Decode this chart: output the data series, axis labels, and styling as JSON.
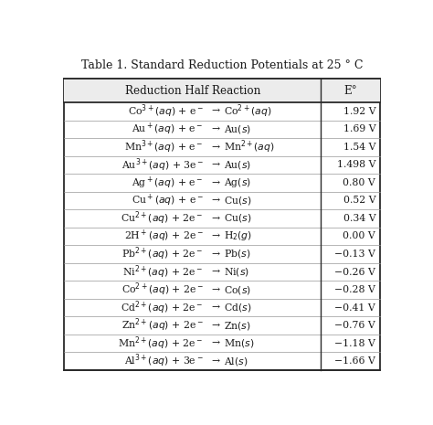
{
  "title": "Table 1. Standard Reduction Potentials at 25 ° C",
  "col_header_left": "Reduction Half Reaction",
  "col_header_right": "E°",
  "rows_left": [
    "Co$^{3+}$$(aq)$ + e$^-$",
    "Au$^+$$(aq)$ + e$^-$",
    "Mn$^{3+}$$(aq)$ + e$^-$",
    "Au$^{3+}$$(aq)$ + 3e$^-$",
    "Ag$^+$$(aq)$ + e$^-$",
    "Cu$^+$$(aq)$ + e$^-$",
    "Cu$^{2+}$$(aq)$ + 2e$^-$",
    "2H$^+$$(aq)$ + 2e$^-$",
    "Pb$^{2+}$$(aq)$ + 2e$^-$",
    "Ni$^{2+}$$(aq)$ + 2e$^-$",
    "Co$^{2+}$$(aq)$ + 2e$^-$",
    "Cd$^{2+}$$(aq)$ + 2e$^-$",
    "Zn$^{2+}$$(aq)$ + 2e$^-$",
    "Mn$^{2+}$$(aq)$ + 2e$^-$",
    "Al$^{3+}$$(aq)$ + 3e$^-$"
  ],
  "rows_right": [
    "Co$^{2+}$$(aq)$",
    "Au$(s)$",
    "Mn$^{2+}$$(aq)$",
    "Au$(s)$",
    "Ag$(s)$",
    "Cu$(s)$",
    "Cu$(s)$",
    "H$_2$$(g)$",
    "Pb$(s)$",
    "Ni$(s)$",
    "Co$(s)$",
    "Cd$(s)$",
    "Zn$(s)$",
    "Mn$(s)$",
    "Al$(s)$"
  ],
  "E_values": [
    "1.92 V",
    "1.69 V",
    "1.54 V",
    "1.498 V",
    "0.80 V",
    "0.52 V",
    "0.34 V",
    "0.00 V",
    "−0.13 V",
    "−0.26 V",
    "−0.28 V",
    "−0.41 V",
    "−0.76 V",
    "−1.18 V",
    "−1.66 V"
  ],
  "bg_color": "#ffffff",
  "border_color": "#2a2a2a",
  "text_color": "#1a1a1a",
  "header_bg": "#ececec",
  "font_size": 7.8,
  "title_font_size": 9.0
}
